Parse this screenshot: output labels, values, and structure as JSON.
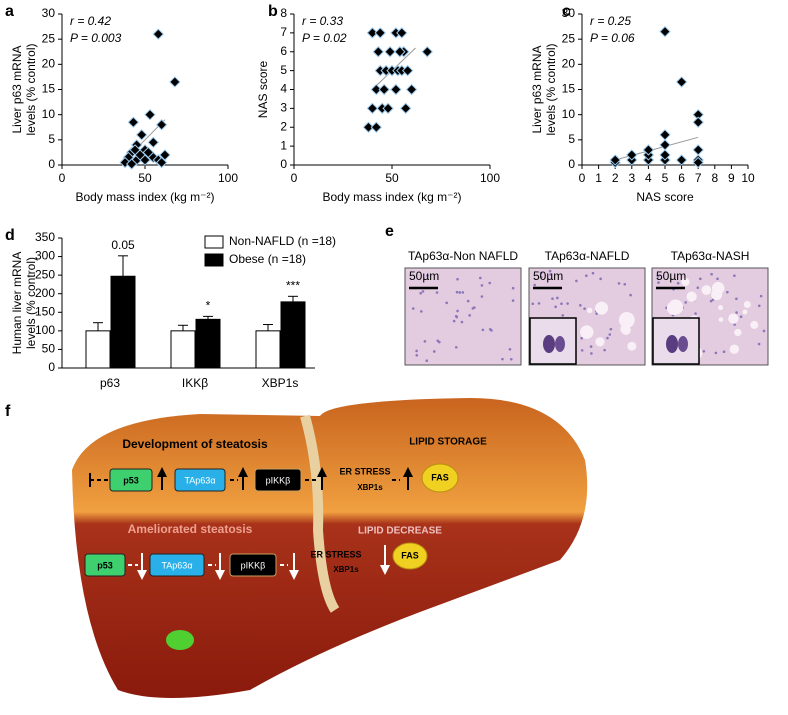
{
  "chart_data": [
    {
      "type": "scatter",
      "panel": "a",
      "xlabel": "Body mass index (kg m⁻²)",
      "ylabel": [
        "Liver p63 mRNA",
        "levels (% control)"
      ],
      "annotations": [
        "r = 0.42",
        "P = 0.003"
      ],
      "x": [
        58,
        68,
        53,
        60,
        43,
        48,
        55,
        45,
        50,
        42,
        40,
        45,
        50,
        55,
        58,
        60,
        38,
        42,
        47,
        52,
        44,
        62
      ],
      "values": [
        26,
        16.5,
        10,
        8,
        8.5,
        6,
        4.5,
        4,
        3,
        2.5,
        1.5,
        1,
        1,
        1.5,
        1,
        0.5,
        0.5,
        0.2,
        2,
        2.5,
        3,
        2
      ],
      "color": "#000000",
      "xlim": [
        0,
        100
      ],
      "ylim": [
        0,
        30
      ],
      "xticks": [
        0,
        50,
        100
      ],
      "yticks": [
        0,
        5,
        10,
        15,
        20,
        25,
        30
      ],
      "trendline": {
        "x": [
          38,
          62
        ],
        "values": [
          1,
          9
        ]
      }
    },
    {
      "type": "scatter",
      "panel": "b",
      "xlabel": "Body mass index (kg m⁻²)",
      "ylabel": [
        "NAS score"
      ],
      "annotations": [
        "r = 0.33",
        "P = 0.02"
      ],
      "x": [
        38,
        42,
        40,
        45,
        48,
        42,
        46,
        52,
        44,
        47,
        50,
        53,
        55,
        58,
        43,
        49,
        56,
        68,
        40,
        44,
        52,
        55,
        57,
        60,
        54
      ],
      "values": [
        2,
        2,
        3,
        3,
        3,
        4,
        4,
        4,
        5,
        5,
        5,
        5,
        5,
        5,
        6,
        6,
        6,
        6,
        7,
        7,
        7,
        7,
        3,
        4,
        6
      ],
      "color": "#000000",
      "xlim": [
        0,
        100
      ],
      "ylim": [
        0,
        8
      ],
      "xticks": [
        0,
        50,
        100
      ],
      "yticks": [
        0,
        1,
        2,
        3,
        4,
        5,
        6,
        7,
        8
      ],
      "trendline": {
        "x": [
          40,
          62
        ],
        "values": [
          4,
          6.2
        ]
      }
    },
    {
      "type": "scatter",
      "panel": "c",
      "xlabel": "NAS score",
      "ylabel": [
        "Liver p63 mRNA",
        "levels (% control)"
      ],
      "annotations": [
        "r = 0.25",
        "P = 0.06"
      ],
      "x": [
        2,
        2,
        3,
        3,
        4,
        4,
        4,
        5,
        5,
        5,
        5,
        5,
        6,
        6,
        7,
        7,
        7,
        7,
        7
      ],
      "values": [
        0.5,
        1,
        1,
        2,
        1,
        2,
        3,
        1,
        2,
        4,
        6,
        26.5,
        1,
        16.5,
        10,
        8.5,
        3,
        1,
        0.5
      ],
      "color": "#000000",
      "xlim": [
        0,
        10
      ],
      "ylim": [
        0,
        30
      ],
      "xticks": [
        0,
        1,
        2,
        3,
        4,
        5,
        6,
        7,
        8,
        9,
        10
      ],
      "yticks": [
        0,
        5,
        10,
        15,
        20,
        25,
        30
      ],
      "trendline": {
        "x": [
          2,
          7
        ],
        "values": [
          1,
          5.5
        ]
      }
    },
    {
      "type": "bar",
      "panel": "d",
      "ylabel": [
        "Human liver mRNA",
        "levels (% control)"
      ],
      "categories": [
        "p63",
        "IKKβ",
        "XBP1s"
      ],
      "series": [
        {
          "name": "Non-NAFLD (n =18)",
          "color": "#ffffff",
          "values": [
            100,
            100,
            100
          ],
          "errors": [
            22,
            15,
            17
          ]
        },
        {
          "name": "Obese (n =18)",
          "color": "#000000",
          "values": [
            247,
            131,
            178
          ],
          "errors": [
            55,
            8,
            15
          ]
        }
      ],
      "annotations": [
        "0.05",
        "*",
        "***"
      ],
      "ylim": [
        0,
        350
      ],
      "yticks": [
        0,
        50,
        100,
        150,
        200,
        250,
        300,
        350
      ]
    }
  ],
  "histology": {
    "panel": "e",
    "images": [
      {
        "title": "TAp63α-Non NAFLD",
        "scale": "50µm"
      },
      {
        "title": "TAp63α-NAFLD",
        "scale": "50µm"
      },
      {
        "title": "TAp63α-NASH",
        "scale": "50µm"
      }
    ]
  },
  "diagram": {
    "panel": "f",
    "top": {
      "title": "Development of steatosis",
      "right": "LIPID STORAGE",
      "p53": "p53",
      "tap63": "TAp63α",
      "pikk": "pIKKβ",
      "er": "ER STRESS",
      "xbp": "XBP1s",
      "fas": "FAS"
    },
    "bottom": {
      "title": "Ameliorated steatosis",
      "right": "LIPID DECREASE",
      "p53": "p53",
      "tap63": "TAp63α",
      "pikk": "pIKKβ",
      "er": "ER STRESS",
      "xbp": "XBP1s",
      "fas": "FAS"
    }
  }
}
